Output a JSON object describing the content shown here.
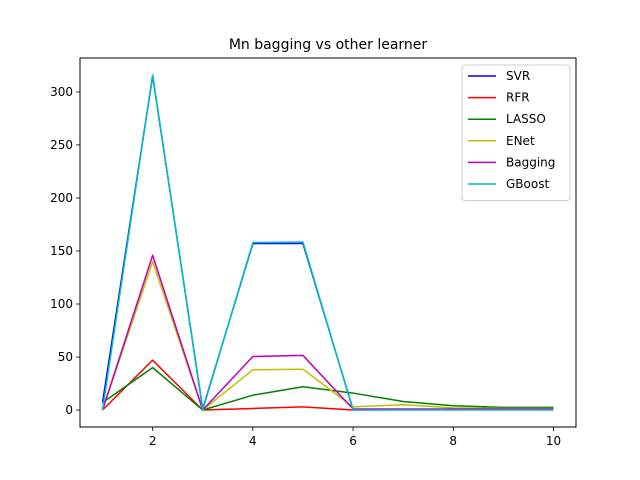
{
  "chart_data": {
    "type": "line",
    "title": "Mn bagging vs other learner",
    "xlabel": "",
    "ylabel": "",
    "xlim": [
      0.55,
      10.45
    ],
    "ylim": [
      -16,
      332
    ],
    "xticks": [
      2,
      4,
      6,
      8,
      10
    ],
    "yticks": [
      0,
      50,
      100,
      150,
      200,
      250,
      300
    ],
    "grid": false,
    "legend_position": "top-right",
    "x": [
      1,
      2,
      3,
      4,
      5,
      6,
      7,
      8,
      9,
      10
    ],
    "series": [
      {
        "name": "SVR",
        "color": "#0000ff",
        "values": [
          7,
          315,
          1,
          157,
          157,
          0.5,
          0.5,
          0.5,
          0.5,
          0.5
        ]
      },
      {
        "name": "RFR",
        "color": "#ff0000",
        "values": [
          0,
          47,
          0,
          1.5,
          3,
          0,
          0.5,
          0.5,
          0.5,
          0.5
        ]
      },
      {
        "name": "LASSO",
        "color": "#008000",
        "values": [
          7,
          40,
          0,
          14,
          22,
          16,
          8,
          4,
          2.5,
          2.5
        ]
      },
      {
        "name": "ENet",
        "color": "#bfbf00",
        "values": [
          0,
          140,
          0,
          38,
          38.5,
          3,
          5,
          2,
          1.5,
          1.5
        ]
      },
      {
        "name": "Bagging",
        "color": "#bf00bf",
        "values": [
          0,
          146,
          0,
          50.5,
          51.5,
          1,
          1,
          1,
          1,
          1
        ]
      },
      {
        "name": "GBoost",
        "color": "#00bfbf",
        "values": [
          0,
          316,
          0,
          158,
          158.5,
          0,
          0,
          0,
          0,
          0
        ]
      }
    ]
  }
}
